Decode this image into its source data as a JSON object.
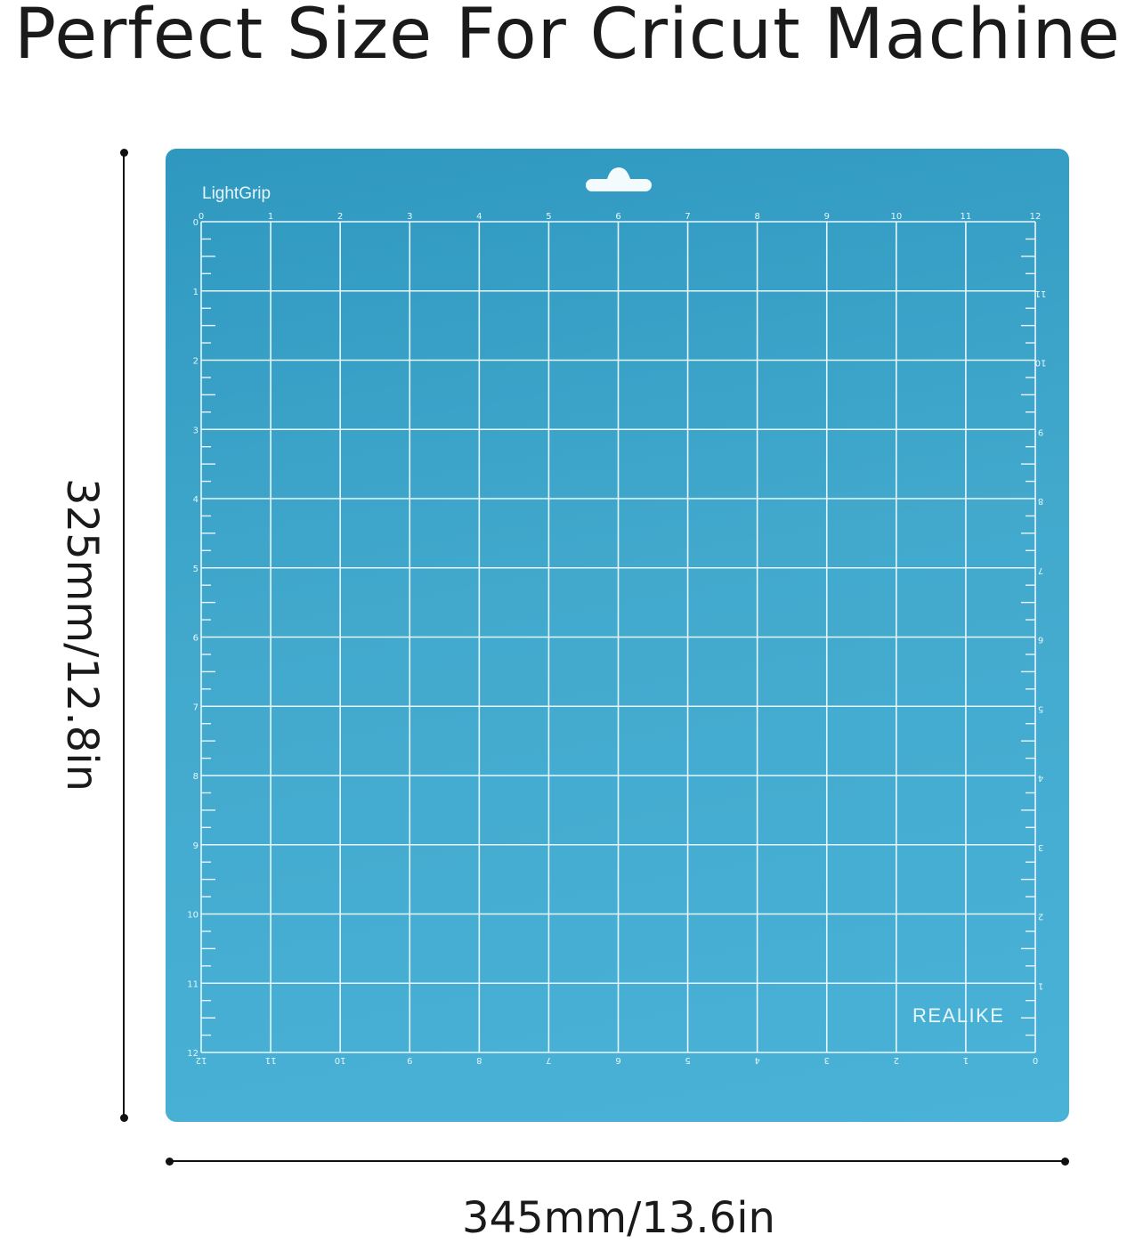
{
  "title": "Perfect Size For Cricut Machine",
  "mat": {
    "brand_top": "LightGrip",
    "brand_bottom": "REALIKE",
    "ruler_inches": 12,
    "ticks_per_inch": 4,
    "color": "#42a9cd",
    "line_color": "#e8f6fb"
  },
  "dimensions": {
    "height_label": "325mm/12.8in",
    "width_label": "345mm/13.6in"
  }
}
